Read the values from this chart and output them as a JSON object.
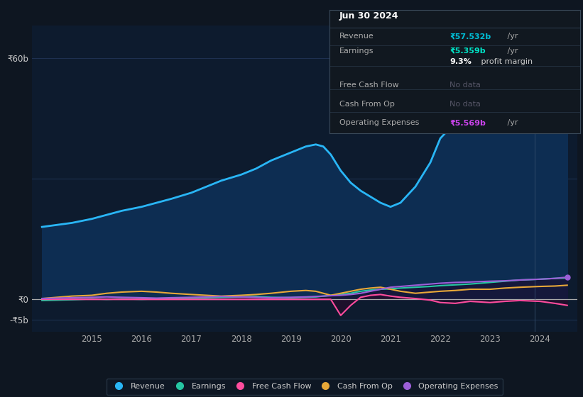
{
  "bg_color": "#0e1621",
  "plot_bg_color": "#0d1b2e",
  "title_box": {
    "date": "Jun 30 2024",
    "revenue_label": "Revenue",
    "revenue_val": "₹57.532b",
    "revenue_suffix": " /yr",
    "earnings_label": "Earnings",
    "earnings_val": "₹5.359b",
    "earnings_suffix": " /yr",
    "profit_margin": "9.3%",
    "profit_margin_text": " profit margin",
    "free_cash_flow_label": "Free Cash Flow",
    "free_cash_flow_val": "No data",
    "cash_from_op_label": "Cash From Op",
    "cash_from_op_val": "No data",
    "op_exp_label": "Operating Expenses",
    "op_exp_val": "₹5.569b",
    "op_exp_suffix": " /yr",
    "revenue_color": "#00bcd4",
    "earnings_color": "#00e5c8",
    "op_exp_color": "#cc44ee"
  },
  "ylabel_60b": "₹60b",
  "ylabel_0": "₹0",
  "ylabel_neg5b": "-₹5b",
  "ylim": [
    -8,
    68
  ],
  "years": [
    2014.0,
    2014.3,
    2014.6,
    2015.0,
    2015.3,
    2015.6,
    2016.0,
    2016.3,
    2016.6,
    2017.0,
    2017.3,
    2017.6,
    2018.0,
    2018.3,
    2018.6,
    2019.0,
    2019.3,
    2019.5,
    2019.65,
    2019.8,
    2020.0,
    2020.2,
    2020.4,
    2020.6,
    2020.8,
    2021.0,
    2021.2,
    2021.5,
    2021.8,
    2022.0,
    2022.3,
    2022.6,
    2023.0,
    2023.3,
    2023.6,
    2024.0,
    2024.3,
    2024.55
  ],
  "revenue": [
    18,
    18.5,
    19,
    20,
    21,
    22,
    23,
    24,
    25,
    26.5,
    28,
    29.5,
    31,
    32.5,
    34.5,
    36.5,
    38,
    38.5,
    38,
    36,
    32,
    29,
    27,
    25.5,
    24,
    23,
    24,
    28,
    34,
    40,
    44,
    47,
    50,
    52,
    54,
    55.5,
    57,
    57.5
  ],
  "earnings": [
    -0.3,
    -0.2,
    -0.1,
    0.1,
    0.0,
    0.1,
    0.0,
    0.1,
    0.2,
    0.3,
    0.4,
    0.5,
    0.6,
    0.7,
    0.5,
    0.4,
    0.5,
    0.6,
    0.8,
    1.0,
    1.2,
    1.5,
    2.0,
    2.3,
    2.5,
    2.6,
    2.8,
    3.0,
    3.2,
    3.4,
    3.6,
    3.8,
    4.2,
    4.5,
    4.8,
    5.0,
    5.2,
    5.3
  ],
  "free_cash_flow": [
    0.0,
    0.0,
    0.0,
    0.0,
    0.0,
    0.0,
    0.0,
    0.0,
    0.0,
    0.0,
    0.0,
    0.0,
    0.0,
    0.0,
    0.0,
    0.0,
    0.0,
    0.0,
    0.0,
    0.0,
    -4.0,
    -1.5,
    0.5,
    1.0,
    1.2,
    0.8,
    0.5,
    0.2,
    -0.2,
    -0.8,
    -1.0,
    -0.5,
    -0.8,
    -0.5,
    -0.3,
    -0.5,
    -1.0,
    -1.5
  ],
  "cash_from_op": [
    0.2,
    0.5,
    0.8,
    1.0,
    1.5,
    1.8,
    2.0,
    1.8,
    1.5,
    1.2,
    1.0,
    0.8,
    1.0,
    1.2,
    1.5,
    2.0,
    2.2,
    2.0,
    1.5,
    1.0,
    1.5,
    2.0,
    2.5,
    2.8,
    3.0,
    2.5,
    2.0,
    1.5,
    1.8,
    2.0,
    2.2,
    2.5,
    2.5,
    2.8,
    3.0,
    3.2,
    3.3,
    3.5
  ],
  "operating_expenses": [
    0.2,
    0.3,
    0.4,
    0.5,
    0.6,
    0.5,
    0.4,
    0.3,
    0.4,
    0.5,
    0.6,
    0.7,
    0.6,
    0.5,
    0.4,
    0.5,
    0.6,
    0.7,
    0.8,
    0.9,
    1.0,
    1.2,
    1.5,
    2.0,
    2.5,
    3.0,
    3.2,
    3.5,
    3.8,
    4.0,
    4.2,
    4.3,
    4.5,
    4.6,
    4.8,
    5.0,
    5.2,
    5.5
  ],
  "revenue_color": "#29b6f6",
  "earnings_color": "#26c6a2",
  "free_cash_flow_color": "#ff4d9e",
  "cash_from_op_color": "#e8a838",
  "operating_expenses_color": "#9c5fd8",
  "fill_revenue_color": "#0d2d52",
  "fill_earnings_color": "#0a2e2e",
  "grid_color": "#1e3050",
  "legend_bg": "#0e1621",
  "legend_border": "#2a3a4a",
  "xlim": [
    2013.8,
    2024.75
  ],
  "vline_x": 2023.9,
  "xticks": [
    2015,
    2016,
    2017,
    2018,
    2019,
    2020,
    2021,
    2022,
    2023,
    2024
  ]
}
